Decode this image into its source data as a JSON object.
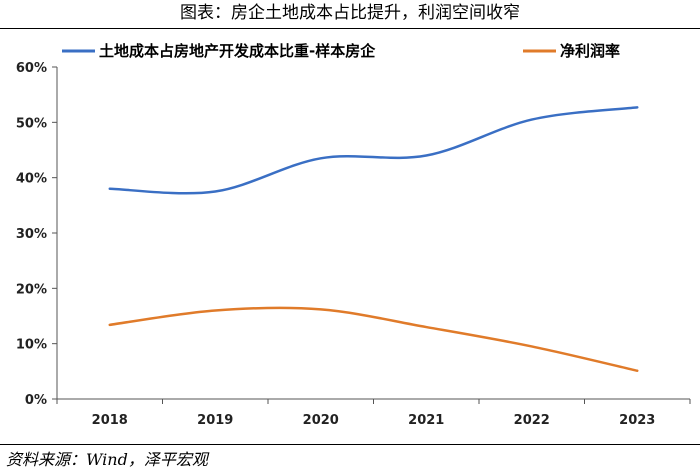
{
  "header": {
    "title": "图表：房企土地成本占比提升，利润空间收窄"
  },
  "footer": {
    "source": "资料来源：Wind，泽平宏观"
  },
  "chart_data": {
    "type": "line",
    "x": [
      "2018",
      "2019",
      "2020",
      "2021",
      "2022",
      "2023"
    ],
    "series": [
      {
        "name": "土地成本占房地产开发成本比重-样本房企",
        "values": [
          38.0,
          37.5,
          43.5,
          44.0,
          50.5,
          52.7
        ],
        "color": "#3a6fc4"
      },
      {
        "name": "净利润率",
        "values": [
          13.4,
          16.0,
          16.2,
          13.0,
          9.5,
          5.1
        ],
        "color": "#e07b2a"
      }
    ],
    "yticks": [
      "0%",
      "10%",
      "20%",
      "30%",
      "40%",
      "50%",
      "60%"
    ],
    "ylim": [
      0,
      60
    ],
    "xlabel": "",
    "ylabel": "",
    "legend": "top",
    "grid": false
  }
}
